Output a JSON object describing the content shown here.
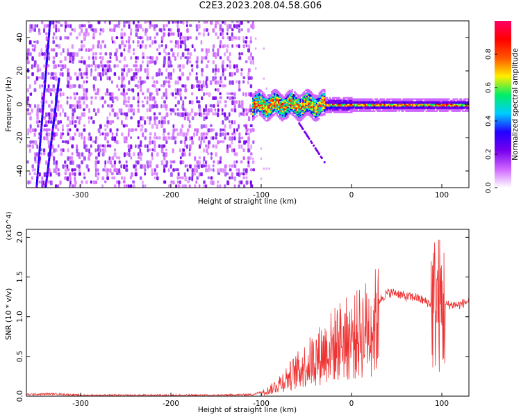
{
  "title": "C2E3.2023.208.04.58.G06",
  "colors": {
    "snr_line": "#ee3333",
    "colormap": [
      "#ffffff",
      "#cf66ff",
      "#7700ee",
      "#2200ff",
      "#00ccff",
      "#00ee66",
      "#ffee00",
      "#ff5500",
      "#ff0000",
      "#ff0066"
    ]
  },
  "chart_data": [
    {
      "type": "heatmap",
      "title": "C2E3.2023.208.04.58.G06",
      "xlabel": "Height of straight line (km)",
      "ylabel": "Frequency (Hz)",
      "xlim": [
        -360,
        130
      ],
      "ylim": [
        -50,
        50
      ],
      "xticks": [
        -300,
        -200,
        -100,
        0,
        100
      ],
      "yticks": [
        -40,
        -20,
        0,
        20,
        40
      ],
      "colorbar": {
        "label": "Normalized spectral amplitude",
        "range": [
          0.0,
          1.0
        ],
        "ticks": [
          "0.0",
          "0.2",
          "0.4",
          "0.6",
          "0.8"
        ]
      },
      "features": [
        {
          "name": "noise",
          "x_range": [
            -360,
            -110
          ],
          "amplitude": 0.1
        },
        {
          "name": "signal",
          "x_range": [
            -110,
            130
          ],
          "frequency": 0,
          "amplitude": 0.9
        },
        {
          "name": "branch",
          "x": [
            -60,
            -30
          ],
          "frequency": [
            -10,
            -35
          ]
        },
        {
          "name": "streak",
          "x": [
            -350,
            -335
          ],
          "frequency": [
            -50,
            50
          ]
        },
        {
          "name": "streak",
          "x": [
            -340,
            -325
          ],
          "frequency": [
            -50,
            16
          ]
        }
      ]
    },
    {
      "type": "line",
      "xlabel": "Height of straight line (km)",
      "ylabel": "SNR (10 * v/v)",
      "ylabel_scale": "(x10^4)",
      "xlim": [
        -360,
        130
      ],
      "ylim": [
        0,
        2.1
      ],
      "xticks": [
        -300,
        -200,
        -100,
        0,
        100
      ],
      "yticks": [
        "0.0",
        "0.5",
        "1.0",
        "1.5",
        "2.0"
      ],
      "series": [
        {
          "x": [
            -360,
            -330,
            -300,
            -250,
            -200,
            -150,
            -110,
            -100,
            -90,
            -80,
            -70,
            -60,
            -50,
            -40,
            -30,
            -20,
            -10,
            0,
            10,
            20,
            30,
            40,
            50,
            60,
            70,
            80,
            90,
            95,
            100,
            105,
            110,
            120,
            130
          ],
          "y": [
            0.02,
            0.03,
            0.01,
            0.01,
            0.01,
            0.01,
            0.02,
            0.05,
            0.1,
            0.2,
            0.3,
            0.4,
            0.5,
            0.6,
            0.7,
            0.8,
            0.9,
            0.9,
            1.0,
            1.1,
            1.2,
            1.3,
            1.3,
            1.25,
            1.25,
            1.2,
            1.15,
            1.2,
            1.1,
            1.15,
            1.15,
            1.15,
            1.2
          ]
        }
      ]
    }
  ]
}
